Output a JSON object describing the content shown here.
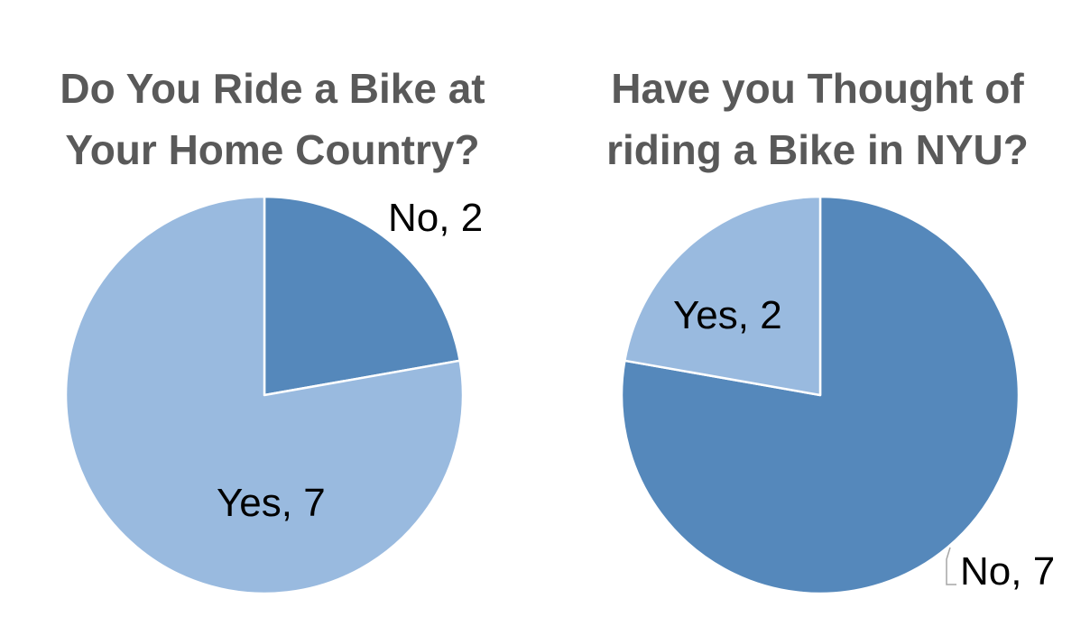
{
  "chart_data": [
    {
      "type": "pie",
      "title": "Do You Ride a Bike at\nYour Home Country?",
      "slices": [
        {
          "label": "No",
          "value": 2,
          "data_label": "No, 2",
          "color": "#5588bb"
        },
        {
          "label": "Yes",
          "value": 7,
          "data_label": "Yes, 7",
          "color": "#99badf"
        }
      ],
      "start_angle_deg": 0,
      "direction": "clockwise"
    },
    {
      "type": "pie",
      "title": "Have you Thought of\nriding a Bike in NYU?",
      "slices": [
        {
          "label": "No",
          "value": 7,
          "data_label": "No, 7",
          "color": "#5588bb"
        },
        {
          "label": "Yes",
          "value": 2,
          "data_label": "Yes, 2",
          "color": "#99badf"
        }
      ],
      "start_angle_deg": 0,
      "direction": "clockwise"
    }
  ]
}
